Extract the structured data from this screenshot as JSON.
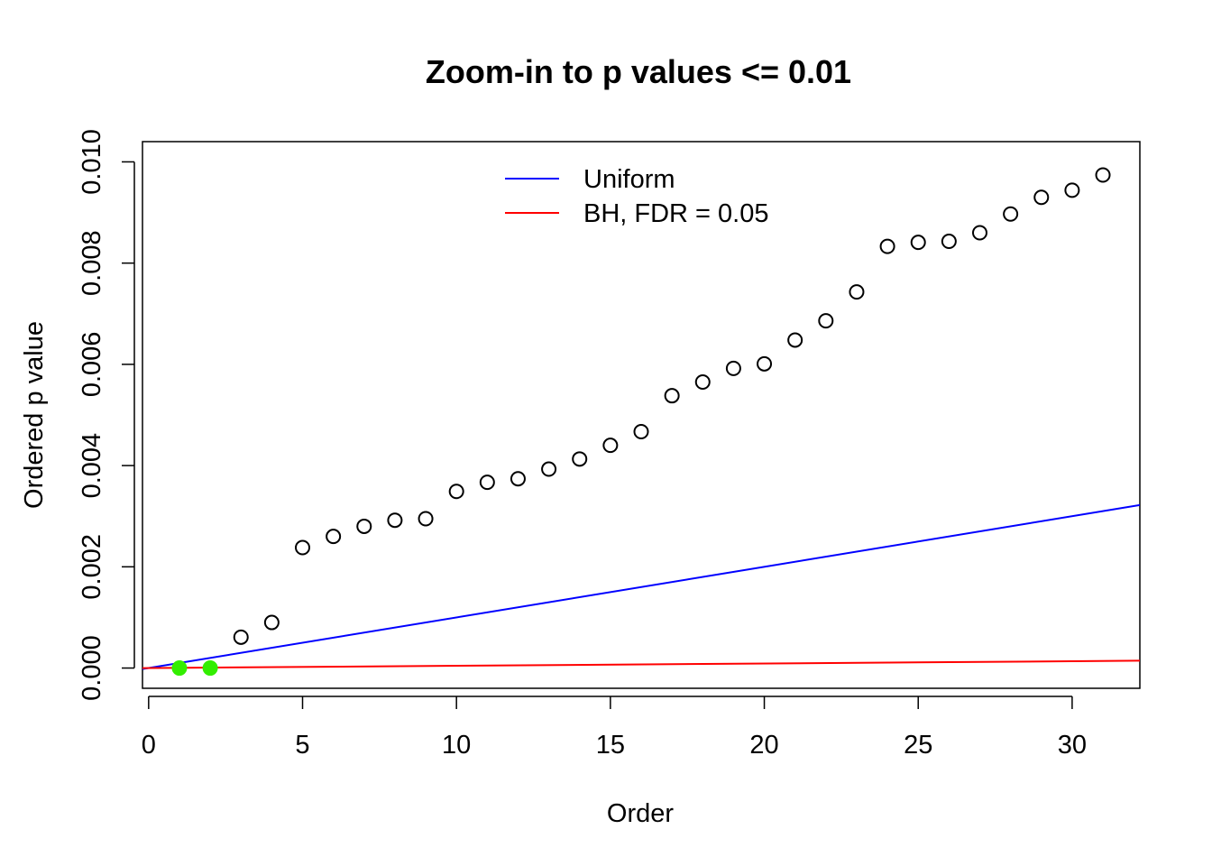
{
  "chart_data": {
    "type": "scatter",
    "title": "Zoom-in to p values <= 0.01",
    "xlabel": "Order",
    "ylabel": "Ordered p value",
    "xlim": [
      -0.2,
      32.2
    ],
    "ylim": [
      -0.0004,
      0.0104
    ],
    "x_ticks": [
      0,
      5,
      10,
      15,
      20,
      25,
      30
    ],
    "y_ticks": [
      0.0,
      0.002,
      0.004,
      0.006,
      0.008,
      0.01
    ],
    "y_tick_labels": [
      "0.000",
      "0.002",
      "0.004",
      "0.006",
      "0.008",
      "0.010"
    ],
    "grid": false,
    "legend_position": "top-center",
    "points": {
      "x": [
        1,
        2,
        3,
        4,
        5,
        6,
        7,
        8,
        9,
        10,
        11,
        12,
        13,
        14,
        15,
        16,
        17,
        18,
        19,
        20,
        21,
        22,
        23,
        24,
        25,
        26,
        27,
        28,
        29,
        30,
        31
      ],
      "y": [
        0.0,
        0.0,
        0.00061,
        0.0009,
        0.00238,
        0.0026,
        0.0028,
        0.00292,
        0.00295,
        0.00349,
        0.00367,
        0.00374,
        0.00393,
        0.00413,
        0.0044,
        0.00467,
        0.00538,
        0.00565,
        0.00592,
        0.00601,
        0.00648,
        0.00686,
        0.00743,
        0.00833,
        0.00841,
        0.00843,
        0.0086,
        0.00897,
        0.0093,
        0.00944,
        0.00974
      ],
      "significant_count": 2,
      "significant_color": "#33ee00",
      "point_color": "#000000"
    },
    "lines": [
      {
        "name": "Uniform",
        "slope": 0.0001,
        "intercept": 0,
        "color": "#0000ff"
      },
      {
        "name": "BH, FDR = 0.05",
        "slope": 4.5e-06,
        "intercept": 0,
        "color": "#ff0000"
      }
    ]
  }
}
